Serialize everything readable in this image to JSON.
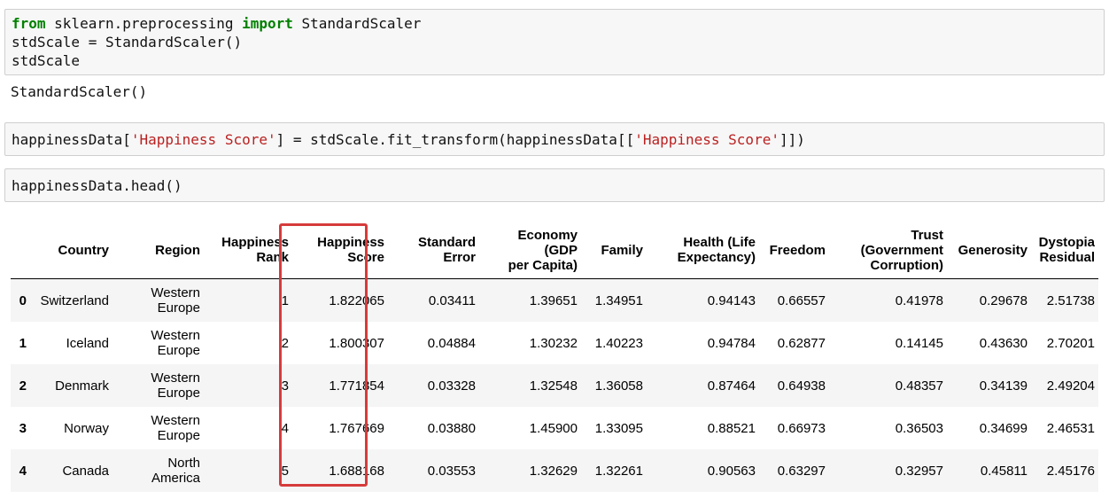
{
  "cells": [
    {
      "lines": [
        [
          {
            "t": "from",
            "c": "kw"
          },
          {
            "t": " sklearn.preprocessing ",
            "c": ""
          },
          {
            "t": "import",
            "c": "kw"
          },
          {
            "t": " StandardScaler",
            "c": ""
          }
        ],
        [
          {
            "t": "stdScale = StandardScaler()",
            "c": ""
          }
        ],
        [
          {
            "t": "stdScale",
            "c": ""
          }
        ]
      ],
      "output": "StandardScaler()"
    },
    {
      "lines": [
        [
          {
            "t": "happinessData[",
            "c": ""
          },
          {
            "t": "'Happiness Score'",
            "c": "str"
          },
          {
            "t": "] = stdScale.fit_transform(happinessData[[",
            "c": ""
          },
          {
            "t": "'Happiness Score'",
            "c": "str"
          },
          {
            "t": "]])",
            "c": ""
          }
        ]
      ]
    },
    {
      "lines": [
        [
          {
            "t": "happinessData.head()",
            "c": ""
          }
        ]
      ]
    }
  ],
  "table": {
    "columns": [
      [
        "Country"
      ],
      [
        "Region"
      ],
      [
        "Happiness",
        "Rank"
      ],
      [
        "Happiness",
        "Score"
      ],
      [
        "Standard",
        "Error"
      ],
      [
        "Economy (GDP",
        "per Capita)"
      ],
      [
        "Family"
      ],
      [
        "Health (Life",
        "Expectancy)"
      ],
      [
        "Freedom"
      ],
      [
        "Trust",
        "(Government",
        "Corruption)"
      ],
      [
        "Generosity"
      ],
      [
        "Dystopia",
        "Residual"
      ]
    ],
    "rows": [
      {
        "index": "0",
        "cells": [
          [
            "Switzerland"
          ],
          [
            "Western",
            "Europe"
          ],
          [
            "1"
          ],
          [
            "1.822065"
          ],
          [
            "0.03411"
          ],
          [
            "1.39651"
          ],
          [
            "1.34951"
          ],
          [
            "0.94143"
          ],
          [
            "0.66557"
          ],
          [
            "0.41978"
          ],
          [
            "0.29678"
          ],
          [
            "2.51738"
          ]
        ]
      },
      {
        "index": "1",
        "cells": [
          [
            "Iceland"
          ],
          [
            "Western",
            "Europe"
          ],
          [
            "2"
          ],
          [
            "1.800307"
          ],
          [
            "0.04884"
          ],
          [
            "1.30232"
          ],
          [
            "1.40223"
          ],
          [
            "0.94784"
          ],
          [
            "0.62877"
          ],
          [
            "0.14145"
          ],
          [
            "0.43630"
          ],
          [
            "2.70201"
          ]
        ]
      },
      {
        "index": "2",
        "cells": [
          [
            "Denmark"
          ],
          [
            "Western",
            "Europe"
          ],
          [
            "3"
          ],
          [
            "1.771854"
          ],
          [
            "0.03328"
          ],
          [
            "1.32548"
          ],
          [
            "1.36058"
          ],
          [
            "0.87464"
          ],
          [
            "0.64938"
          ],
          [
            "0.48357"
          ],
          [
            "0.34139"
          ],
          [
            "2.49204"
          ]
        ]
      },
      {
        "index": "3",
        "cells": [
          [
            "Norway"
          ],
          [
            "Western",
            "Europe"
          ],
          [
            "4"
          ],
          [
            "1.767669"
          ],
          [
            "0.03880"
          ],
          [
            "1.45900"
          ],
          [
            "1.33095"
          ],
          [
            "0.88521"
          ],
          [
            "0.66973"
          ],
          [
            "0.36503"
          ],
          [
            "0.34699"
          ],
          [
            "2.46531"
          ]
        ]
      },
      {
        "index": "4",
        "cells": [
          [
            "Canada"
          ],
          [
            "North",
            "America"
          ],
          [
            "5"
          ],
          [
            "1.688168"
          ],
          [
            "0.03553"
          ],
          [
            "1.32629"
          ],
          [
            "1.32261"
          ],
          [
            "0.90563"
          ],
          [
            "0.63297"
          ],
          [
            "0.32957"
          ],
          [
            "0.45811"
          ],
          [
            "2.45176"
          ]
        ]
      }
    ],
    "highlight_color": "#d63b3b"
  }
}
